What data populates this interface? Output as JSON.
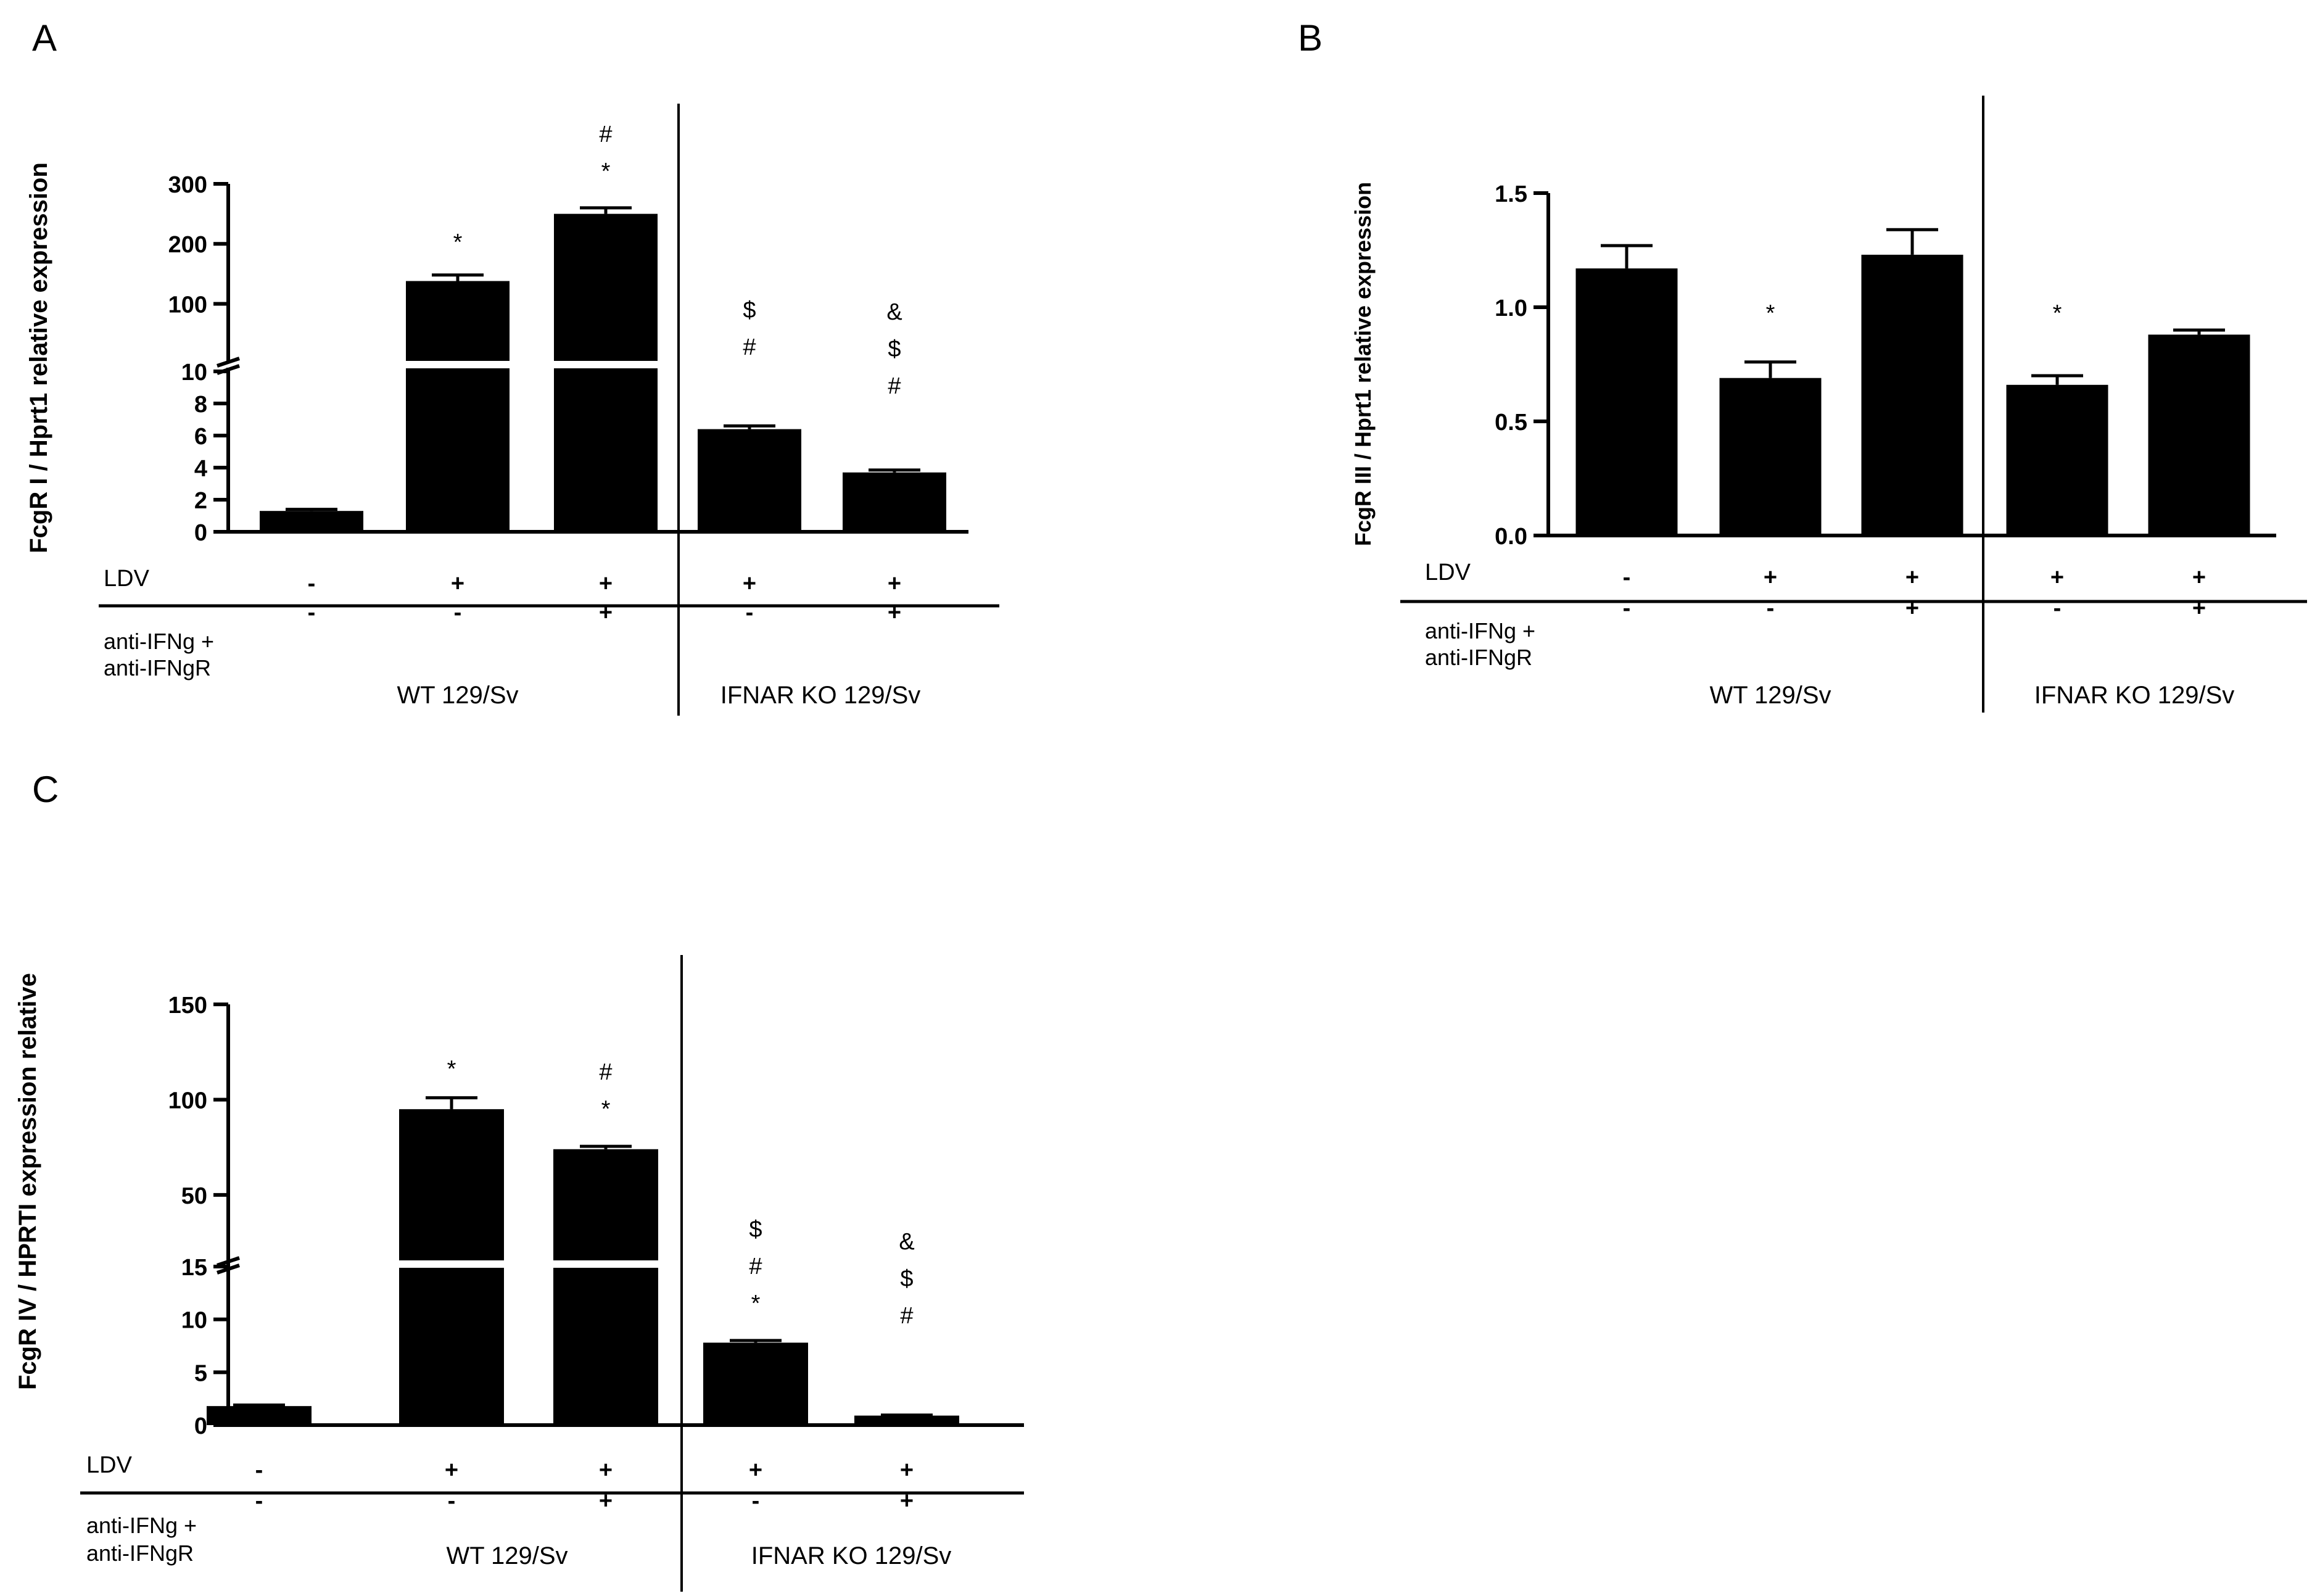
{
  "bar_color": "#000000",
  "labels": {
    "ldv": "LDV",
    "treatment_line1": "anti-IFNg +",
    "treatment_line2": "anti-IFNgR"
  },
  "chart_data": [
    {
      "panel": "A",
      "type": "bar",
      "ylabel": "FcgR I / Hprt1 relative expression",
      "y_axis_break": true,
      "ylim_lower": [
        0,
        10
      ],
      "ylim_upper": [
        10,
        300
      ],
      "yticks_lower": [
        "0",
        "2",
        "4",
        "6",
        "8",
        "10"
      ],
      "yticks_upper": [
        "100",
        "200",
        "300"
      ],
      "categories": [
        "WT -/-",
        "WT +/-",
        "WT +/+",
        "IFNAR KO +/-",
        "IFNAR KO +/+"
      ],
      "values": [
        1.3,
        138,
        250,
        6.4,
        3.7
      ],
      "errors": [
        0.1,
        10,
        10,
        0.2,
        0.15
      ],
      "significance": [
        "",
        "*",
        "* #",
        "# $",
        "# $ &"
      ],
      "ldv": [
        "-",
        "+",
        "+",
        "+",
        "+"
      ],
      "treatment": [
        "-",
        "-",
        "+",
        "-",
        "+"
      ],
      "groups": [
        "WT 129/Sv",
        "IFNAR KO 129/Sv"
      ]
    },
    {
      "panel": "B",
      "type": "bar",
      "ylabel": "FcgR III / Hprt1 relative expression",
      "y_axis_break": false,
      "ylim": [
        0,
        1.5
      ],
      "yticks": [
        "0.0",
        "0.5",
        "1.0",
        "1.5"
      ],
      "categories": [
        "WT -/-",
        "WT +/-",
        "WT +/+",
        "IFNAR KO +/-",
        "IFNAR KO +/+"
      ],
      "values": [
        1.17,
        0.69,
        1.23,
        0.66,
        0.88
      ],
      "errors": [
        0.1,
        0.07,
        0.11,
        0.04,
        0.02
      ],
      "significance": [
        "",
        "*",
        "",
        "*",
        ""
      ],
      "ldv": [
        "-",
        "+",
        "+",
        "+",
        "+"
      ],
      "treatment": [
        "-",
        "-",
        "+",
        "-",
        "+"
      ],
      "groups": [
        "WT 129/Sv",
        "IFNAR KO 129/Sv"
      ]
    },
    {
      "panel": "C",
      "type": "bar",
      "ylabel": "FcgR IV / HPRTI expression relative",
      "y_axis_break": true,
      "ylim_lower": [
        0,
        15
      ],
      "ylim_upper": [
        15,
        150
      ],
      "yticks_lower": [
        "0",
        "5",
        "10",
        "15"
      ],
      "yticks_upper": [
        "50",
        "100",
        "150"
      ],
      "categories": [
        "WT -/-",
        "WT +/-",
        "WT +/+",
        "IFNAR KO +/-",
        "IFNAR KO +/+"
      ],
      "values": [
        1.8,
        95,
        74,
        7.8,
        0.9
      ],
      "errors": [
        0.1,
        6,
        1.5,
        0.2,
        0.05
      ],
      "significance": [
        "",
        "*",
        "* #",
        "* # $",
        "# $ &"
      ],
      "ldv": [
        "-",
        "+",
        "+",
        "+",
        "+"
      ],
      "treatment": [
        "-",
        "-",
        "+",
        "-",
        "+"
      ],
      "groups": [
        "WT 129/Sv",
        "IFNAR KO 129/Sv"
      ]
    }
  ]
}
